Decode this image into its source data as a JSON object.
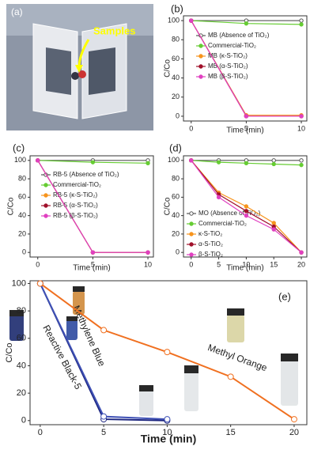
{
  "chart_data": [
    {
      "type": "image",
      "label": "(a)",
      "annotation": "Samples"
    },
    {
      "type": "line",
      "label": "(b)",
      "xlabel": "Time (min)",
      "ylabel": "C/Co",
      "xlim": [
        -0.7,
        10.5
      ],
      "ylim": [
        -5,
        105
      ],
      "xticks": [
        0,
        5,
        10
      ],
      "yticks": [
        0,
        20,
        40,
        60,
        80,
        100
      ],
      "legend": true,
      "series": [
        {
          "name": "MB (Absence of TiO₂)",
          "color": "#555555",
          "x": [
            0,
            5,
            10
          ],
          "values": [
            100,
            100,
            100
          ]
        },
        {
          "name": "Commercial-TiO₂",
          "color": "#66cc33",
          "x": [
            0,
            5,
            10
          ],
          "values": [
            100,
            97,
            96
          ]
        },
        {
          "name": "MB (κ-S-TiO₂)",
          "color": "#f7941d",
          "x": [
            0,
            5,
            10
          ],
          "values": [
            100,
            1,
            1
          ]
        },
        {
          "name": "MB (α-S-TiO₂)",
          "color": "#a0102a",
          "x": [
            0,
            5,
            10
          ],
          "values": [
            100,
            0,
            0
          ]
        },
        {
          "name": "MB (β-S-TiO₂)",
          "color": "#e040c0",
          "x": [
            0,
            5,
            10
          ],
          "values": [
            100,
            0,
            0
          ]
        }
      ]
    },
    {
      "type": "line",
      "label": "(c)",
      "xlabel": "Time (min)",
      "ylabel": "C/Co",
      "xlim": [
        -0.7,
        10.5
      ],
      "ylim": [
        -5,
        105
      ],
      "xticks": [
        0,
        5,
        10
      ],
      "yticks": [
        0,
        20,
        40,
        60,
        80,
        100
      ],
      "legend": true,
      "series": [
        {
          "name": "RB-5 (Absence of TiO₂)",
          "color": "#555555",
          "x": [
            0,
            5,
            10
          ],
          "values": [
            100,
            100,
            100
          ]
        },
        {
          "name": "Commercial-TiO₂",
          "color": "#66cc33",
          "x": [
            0,
            5,
            10
          ],
          "values": [
            100,
            98,
            97
          ]
        },
        {
          "name": "RB-5 (κ-S-TiO₂)",
          "color": "#f7941d",
          "x": [
            0,
            5,
            10
          ],
          "values": [
            100,
            0,
            0
          ]
        },
        {
          "name": "RB-5 (α-S-TiO₂)",
          "color": "#a0102a",
          "x": [
            0,
            5,
            10
          ],
          "values": [
            100,
            0,
            0
          ]
        },
        {
          "name": "RB-5 (β-S-TiO₂)",
          "color": "#e040c0",
          "x": [
            0,
            5,
            10
          ],
          "values": [
            100,
            0,
            0
          ]
        }
      ]
    },
    {
      "type": "line",
      "label": "(d)",
      "xlabel": "Time (min)",
      "ylabel": "C/Co",
      "xlim": [
        -1.4,
        21
      ],
      "ylim": [
        -5,
        105
      ],
      "xticks": [
        0,
        5,
        10,
        15,
        20
      ],
      "yticks": [
        0,
        20,
        40,
        60,
        80,
        100
      ],
      "legend": true,
      "series": [
        {
          "name": "MO (Absence of TiO₂)",
          "color": "#555555",
          "x": [
            0,
            5,
            10,
            15,
            20
          ],
          "values": [
            100,
            100,
            100,
            100,
            100
          ]
        },
        {
          "name": "Commercial-TiO₂",
          "color": "#66cc33",
          "x": [
            0,
            5,
            10,
            15,
            20
          ],
          "values": [
            100,
            98,
            97,
            96,
            95
          ]
        },
        {
          "name": "κ-S-TiO₂",
          "color": "#f7941d",
          "x": [
            0,
            5,
            10,
            15,
            20
          ],
          "values": [
            100,
            65,
            50,
            32,
            0
          ]
        },
        {
          "name": "α-S-TiO₂",
          "color": "#a0102a",
          "x": [
            0,
            5,
            10,
            15,
            20
          ],
          "values": [
            100,
            63,
            45,
            28,
            0
          ]
        },
        {
          "name": "β-S-TiO₂",
          "color": "#e040c0",
          "x": [
            0,
            5,
            10,
            15,
            20
          ],
          "values": [
            100,
            60,
            40,
            25,
            0
          ]
        }
      ]
    },
    {
      "type": "line",
      "label": "(e)",
      "xlabel": "Time (min)",
      "ylabel": "C/Co",
      "xlim": [
        -0.8,
        21
      ],
      "ylim": [
        -3,
        102
      ],
      "xticks": [
        0,
        5,
        10,
        15,
        20
      ],
      "yticks": [
        0,
        20,
        40,
        60,
        80,
        100
      ],
      "legend": false,
      "series": [
        {
          "name": "Reactive Black-5",
          "color": "#1a237e",
          "x": [
            0,
            5,
            10
          ],
          "values": [
            100,
            1,
            0
          ]
        },
        {
          "name": "Methylene Blue",
          "color": "#3f51b5",
          "x": [
            0,
            5,
            10
          ],
          "values": [
            100,
            3,
            1
          ]
        },
        {
          "name": "Methyl Orange",
          "color": "#f07020",
          "x": [
            0,
            5,
            10,
            15,
            20
          ],
          "values": [
            100,
            66,
            50,
            32,
            1
          ]
        }
      ]
    }
  ]
}
